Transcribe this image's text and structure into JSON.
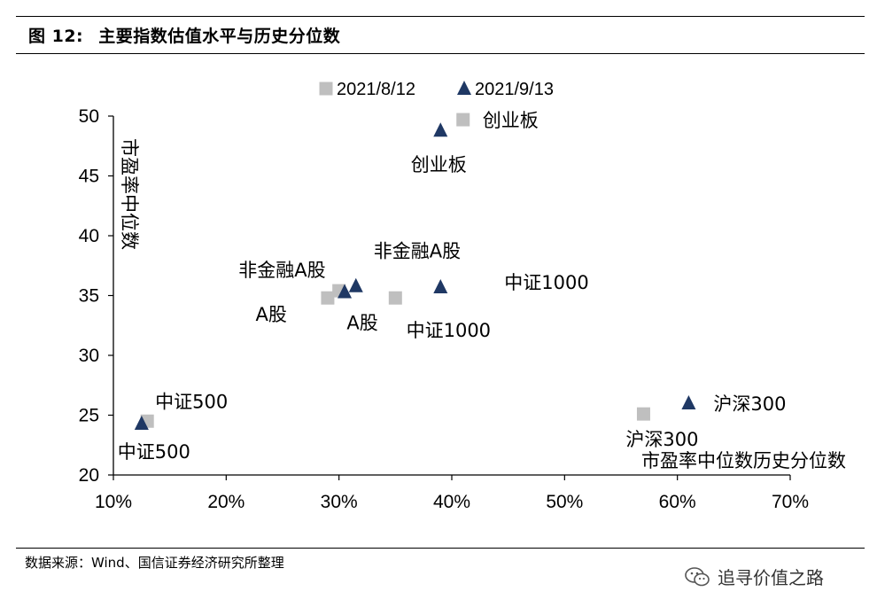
{
  "header": {
    "figure_label": "图 12:",
    "title": "主要指数估值水平与历史分位数"
  },
  "footer": {
    "source": "数据来源：Wind、国信证券经济研究所整理",
    "watermark": "追寻价值之路"
  },
  "chart_data": {
    "type": "scatter",
    "xlabel": "市盈率中位数历史分位数",
    "ylabel": "市盈率中位数",
    "xlim": [
      0.1,
      0.7
    ],
    "ylim": [
      20,
      50
    ],
    "x_ticks": [
      "10%",
      "20%",
      "30%",
      "40%",
      "50%",
      "60%",
      "70%"
    ],
    "y_ticks": [
      "20",
      "25",
      "30",
      "35",
      "40",
      "45",
      "50"
    ],
    "legend_position": "top-center",
    "grid": false,
    "series": [
      {
        "name": "2021/8/12",
        "marker": "square",
        "color": "#bfbfbf",
        "points": [
          {
            "label": "创业板",
            "x": 0.41,
            "y": 49.7
          },
          {
            "label": "非金融A股",
            "x": 0.3,
            "y": 35.4
          },
          {
            "label": "A股",
            "x": 0.29,
            "y": 34.8
          },
          {
            "label": "中证1000",
            "x": 0.35,
            "y": 34.8
          },
          {
            "label": "中证500",
            "x": 0.13,
            "y": 24.5
          },
          {
            "label": "沪深300",
            "x": 0.57,
            "y": 25.1
          }
        ]
      },
      {
        "name": "2021/9/13",
        "marker": "triangle",
        "color": "#1f3864",
        "points": [
          {
            "label": "创业板",
            "x": 0.39,
            "y": 48.8
          },
          {
            "label": "非金融A股",
            "x": 0.315,
            "y": 35.8
          },
          {
            "label": "A股",
            "x": 0.305,
            "y": 35.3
          },
          {
            "label": "中证1000",
            "x": 0.39,
            "y": 35.7
          },
          {
            "label": "中证500",
            "x": 0.125,
            "y": 24.3
          },
          {
            "label": "沪深300",
            "x": 0.61,
            "y": 26.0
          }
        ]
      }
    ],
    "annotations": [
      {
        "text": "创业板",
        "series": 0,
        "point": 0
      },
      {
        "text": "创业板",
        "series": 1,
        "point": 0
      },
      {
        "text": "非金融A股",
        "series": 1,
        "point": 1
      },
      {
        "text": "非金融A股",
        "series": 0,
        "point": 1
      },
      {
        "text": "A股",
        "series": 0,
        "point": 2
      },
      {
        "text": "A股",
        "series": 1,
        "point": 2
      },
      {
        "text": "中证1000",
        "series": 1,
        "point": 3
      },
      {
        "text": "中证1000",
        "series": 0,
        "point": 3
      },
      {
        "text": "中证500",
        "series": 0,
        "point": 4
      },
      {
        "text": "中证500",
        "series": 1,
        "point": 4
      },
      {
        "text": "沪深300",
        "series": 1,
        "point": 5
      },
      {
        "text": "沪深300",
        "series": 0,
        "point": 5
      }
    ]
  }
}
